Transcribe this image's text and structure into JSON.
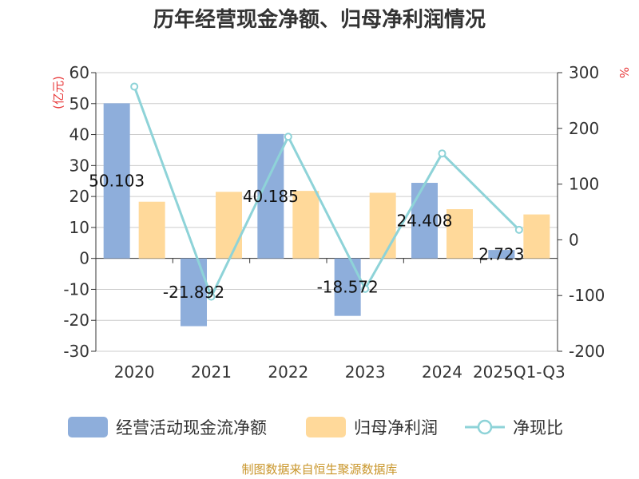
{
  "chart_data": {
    "type": "bar",
    "title": "历年经营现金净额、归母净利润情况",
    "categories": [
      "2020",
      "2021",
      "2022",
      "2023",
      "2024",
      "2025Q1-Q3"
    ],
    "left_axis": {
      "unit": "(亿元)",
      "ylim": [
        -30,
        60
      ],
      "ticks": [
        "60",
        "50",
        "40",
        "30",
        "20",
        "10",
        "0",
        "-10",
        "-20",
        "-30"
      ]
    },
    "right_axis": {
      "unit": "%",
      "ylim": [
        -200,
        300
      ],
      "ticks": [
        "300",
        "200",
        "100",
        "0",
        "-100",
        "-200"
      ]
    },
    "grid": true,
    "legend_position": "bottom",
    "series": [
      {
        "name": "经营活动现金流净额",
        "kind": "bar",
        "axis": "left",
        "color": "#8eaedb",
        "values": [
          50.103,
          -21.892,
          40.185,
          -18.572,
          24.408,
          2.723
        ],
        "labels": [
          "50.103",
          "-21.892",
          "40.185",
          "-18.572",
          "24.408",
          "2.723"
        ]
      },
      {
        "name": "归母净利润",
        "kind": "bar",
        "axis": "left",
        "color": "#ffd99a",
        "values": [
          18.3,
          21.5,
          21.8,
          21.2,
          15.9,
          14.2
        ]
      },
      {
        "name": "净现比",
        "kind": "line",
        "axis": "right",
        "color": "#8ed3d8",
        "values": [
          275,
          -102,
          185,
          -88,
          155,
          18
        ]
      }
    ],
    "source": "制图数据来自恒生聚源数据库"
  }
}
